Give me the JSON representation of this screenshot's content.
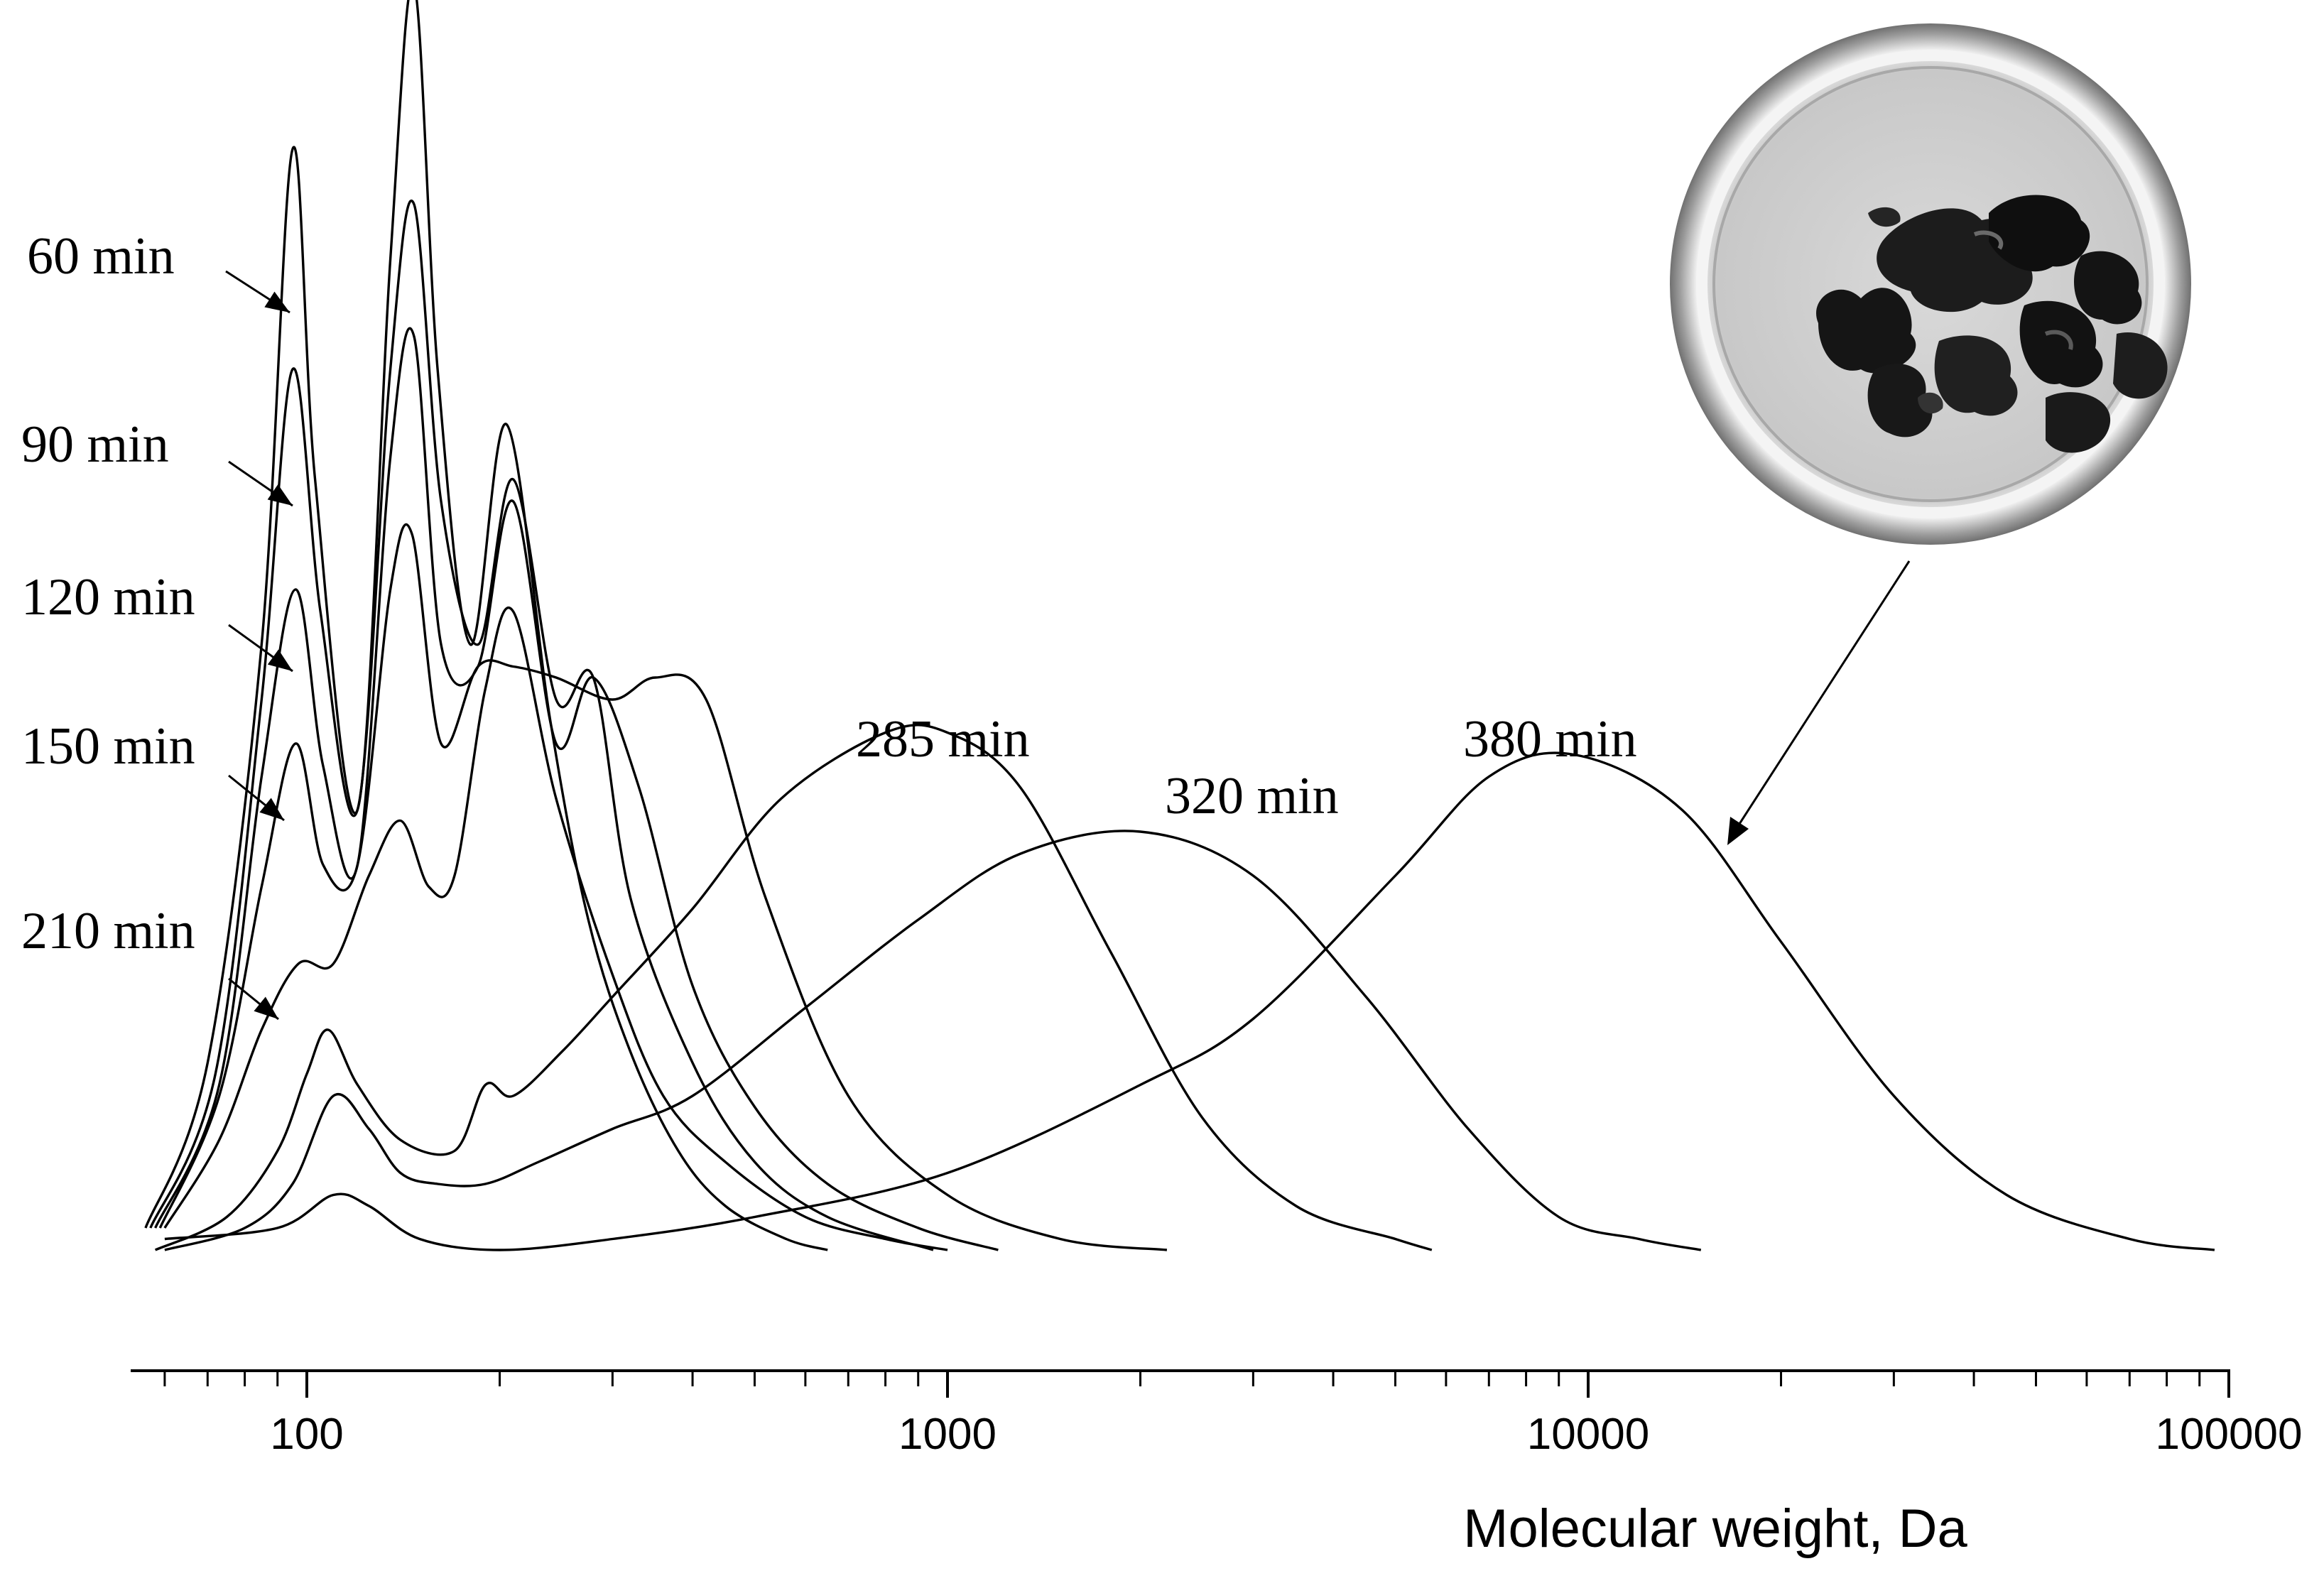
{
  "chart_data": {
    "type": "line",
    "title": "",
    "xlabel": "Molecular weight, Da",
    "ylabel": "",
    "x_scale": "log",
    "xlim": [
      52,
      100000
    ],
    "x_ticks": [
      100,
      1000,
      10000,
      100000
    ],
    "x_tick_labels": [
      "100",
      "1000",
      "10000",
      "100000"
    ],
    "y_axis_visible": false,
    "grid": false,
    "legend": "none",
    "inset_image": "petri dish containing black solid product",
    "inset_arrow_target": "380 min",
    "series": [
      {
        "name": "60 min",
        "points": [
          [
            56,
            0.02
          ],
          [
            70,
            0.17
          ],
          [
            85,
            0.55
          ],
          [
            95,
            1.0
          ],
          [
            103,
            0.7
          ],
          [
            120,
            0.4
          ],
          [
            135,
            0.9
          ],
          [
            147,
            1.15
          ],
          [
            160,
            0.8
          ],
          [
            180,
            0.55
          ],
          [
            205,
            0.75
          ],
          [
            240,
            0.48
          ],
          [
            275,
            0.3
          ],
          [
            320,
            0.18
          ],
          [
            380,
            0.09
          ],
          [
            450,
            0.04
          ],
          [
            560,
            0.01
          ],
          [
            650,
            0.0
          ]
        ]
      },
      {
        "name": "90 min",
        "points": [
          [
            57,
            0.02
          ],
          [
            72,
            0.16
          ],
          [
            85,
            0.5
          ],
          [
            95,
            0.8
          ],
          [
            105,
            0.58
          ],
          [
            120,
            0.4
          ],
          [
            135,
            0.8
          ],
          [
            147,
            0.95
          ],
          [
            162,
            0.68
          ],
          [
            185,
            0.55
          ],
          [
            210,
            0.7
          ],
          [
            245,
            0.5
          ],
          [
            280,
            0.52
          ],
          [
            320,
            0.32
          ],
          [
            400,
            0.17
          ],
          [
            500,
            0.08
          ],
          [
            650,
            0.03
          ],
          [
            950,
            0.0
          ]
        ]
      },
      {
        "name": "120 min",
        "points": [
          [
            58,
            0.02
          ],
          [
            73,
            0.15
          ],
          [
            85,
            0.43
          ],
          [
            96,
            0.6
          ],
          [
            106,
            0.44
          ],
          [
            120,
            0.35
          ],
          [
            135,
            0.72
          ],
          [
            147,
            0.83
          ],
          [
            162,
            0.55
          ],
          [
            185,
            0.53
          ],
          [
            210,
            0.68
          ],
          [
            245,
            0.46
          ],
          [
            280,
            0.52
          ],
          [
            330,
            0.42
          ],
          [
            400,
            0.24
          ],
          [
            500,
            0.13
          ],
          [
            650,
            0.06
          ],
          [
            900,
            0.02
          ],
          [
            1200,
            0.0
          ]
        ]
      },
      {
        "name": "150 min",
        "points": [
          [
            59,
            0.02
          ],
          [
            73,
            0.14
          ],
          [
            85,
            0.33
          ],
          [
            96,
            0.46
          ],
          [
            106,
            0.35
          ],
          [
            120,
            0.35
          ],
          [
            135,
            0.6
          ],
          [
            146,
            0.65
          ],
          [
            162,
            0.46
          ],
          [
            185,
            0.53
          ],
          [
            210,
            0.53
          ],
          [
            245,
            0.52
          ],
          [
            300,
            0.5
          ],
          [
            350,
            0.52
          ],
          [
            420,
            0.5
          ],
          [
            520,
            0.32
          ],
          [
            700,
            0.14
          ],
          [
            1000,
            0.05
          ],
          [
            1500,
            0.01
          ],
          [
            2200,
            0.0
          ]
        ]
      },
      {
        "name": "210 min",
        "points": [
          [
            60,
            0.02
          ],
          [
            73,
            0.1
          ],
          [
            85,
            0.2
          ],
          [
            97,
            0.26
          ],
          [
            110,
            0.26
          ],
          [
            125,
            0.34
          ],
          [
            140,
            0.39
          ],
          [
            155,
            0.33
          ],
          [
            170,
            0.34
          ],
          [
            190,
            0.51
          ],
          [
            210,
            0.58
          ],
          [
            245,
            0.41
          ],
          [
            300,
            0.25
          ],
          [
            360,
            0.14
          ],
          [
            450,
            0.08
          ],
          [
            600,
            0.03
          ],
          [
            800,
            0.01
          ],
          [
            1000,
            0.0
          ]
        ]
      },
      {
        "name": "285 min",
        "points": [
          [
            58,
            0.0
          ],
          [
            75,
            0.03
          ],
          [
            90,
            0.09
          ],
          [
            100,
            0.16
          ],
          [
            108,
            0.2
          ],
          [
            120,
            0.15
          ],
          [
            140,
            0.1
          ],
          [
            170,
            0.09
          ],
          [
            190,
            0.15
          ],
          [
            210,
            0.14
          ],
          [
            250,
            0.18
          ],
          [
            300,
            0.23
          ],
          [
            400,
            0.31
          ],
          [
            550,
            0.41
          ],
          [
            800,
            0.47
          ],
          [
            1000,
            0.47
          ],
          [
            1300,
            0.42
          ],
          [
            1800,
            0.27
          ],
          [
            2500,
            0.12
          ],
          [
            3500,
            0.04
          ],
          [
            5000,
            0.01
          ],
          [
            5700,
            0.0
          ]
        ]
      },
      {
        "name": "320 min",
        "points": [
          [
            60,
            0.0
          ],
          [
            80,
            0.02
          ],
          [
            95,
            0.06
          ],
          [
            110,
            0.14
          ],
          [
            125,
            0.11
          ],
          [
            140,
            0.07
          ],
          [
            160,
            0.06
          ],
          [
            190,
            0.06
          ],
          [
            230,
            0.08
          ],
          [
            300,
            0.11
          ],
          [
            400,
            0.14
          ],
          [
            600,
            0.22
          ],
          [
            900,
            0.3
          ],
          [
            1300,
            0.36
          ],
          [
            2000,
            0.38
          ],
          [
            3000,
            0.34
          ],
          [
            4500,
            0.23
          ],
          [
            6500,
            0.11
          ],
          [
            9000,
            0.03
          ],
          [
            12000,
            0.01
          ],
          [
            15000,
            0.0
          ]
        ]
      },
      {
        "name": "380 min",
        "points": [
          [
            60,
            0.01
          ],
          [
            90,
            0.02
          ],
          [
            110,
            0.05
          ],
          [
            125,
            0.04
          ],
          [
            150,
            0.01
          ],
          [
            200,
            0.0
          ],
          [
            300,
            0.01
          ],
          [
            500,
            0.03
          ],
          [
            1000,
            0.07
          ],
          [
            2000,
            0.15
          ],
          [
            3000,
            0.21
          ],
          [
            5000,
            0.34
          ],
          [
            7000,
            0.43
          ],
          [
            9500,
            0.45
          ],
          [
            14000,
            0.4
          ],
          [
            20000,
            0.28
          ],
          [
            30000,
            0.14
          ],
          [
            45000,
            0.05
          ],
          [
            70000,
            0.01
          ],
          [
            95000,
            0.0
          ]
        ]
      }
    ]
  }
}
